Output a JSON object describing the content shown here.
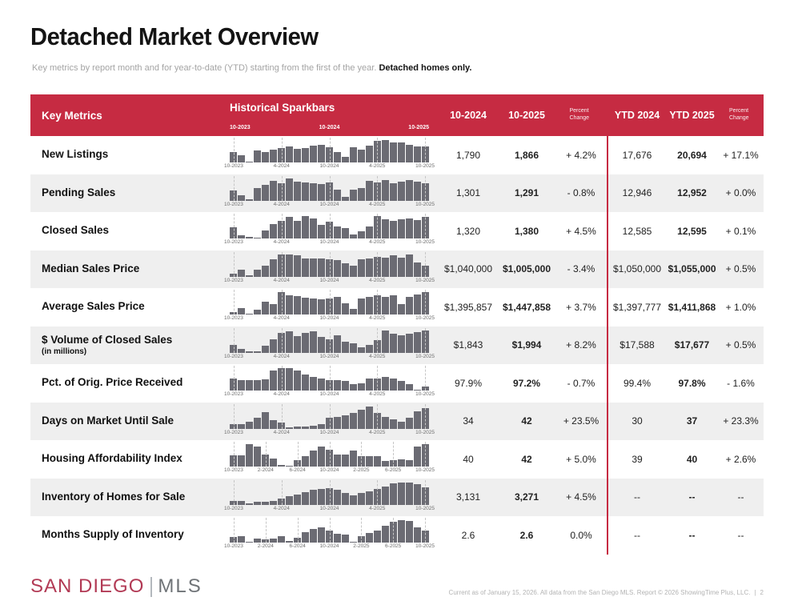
{
  "page": {
    "title": "Detached Market Overview",
    "subtitle": "Key metrics by report month and for year-to-date (YTD) starting from the first of the year.",
    "subtitle_emphasis": "Detached homes only."
  },
  "colors": {
    "accent_red": "#C62B42",
    "bar_gray": "#6B6B73",
    "row_alt": "#EFEFEF",
    "logo_red": "#B23A55",
    "logo_gray": "#6F7377"
  },
  "table": {
    "header": {
      "key_metrics": "Key Metrics",
      "sparkbars_title": "Historical Sparkbars",
      "spark_years": [
        "10-2023",
        "10-2024",
        "10-2025"
      ],
      "month_prev": "10-2024",
      "month_curr": "10-2025",
      "month_pct": "Percent Change",
      "ytd_prev": "YTD 2024",
      "ytd_curr": "YTD 2025",
      "ytd_pct": "Percent Change"
    },
    "rows": [
      {
        "label": "New Listings",
        "ticks": [
          "10-2023",
          "4-2024",
          "10-2024",
          "4-2025",
          "10-2025"
        ],
        "bars": [
          0.45,
          0.32,
          0.05,
          0.52,
          0.45,
          0.58,
          0.63,
          0.72,
          0.62,
          0.66,
          0.74,
          0.8,
          0.68,
          0.45,
          0.25,
          0.68,
          0.58,
          0.75,
          0.95,
          1.0,
          0.9,
          0.9,
          0.78,
          0.7,
          0.72
        ],
        "month_prev": "1,790",
        "month_curr": "1,866",
        "month_pct": "+ 4.2%",
        "ytd_prev": "17,676",
        "ytd_curr": "20,694",
        "ytd_pct": "+ 17.1%"
      },
      {
        "label": "Pending Sales",
        "ticks": [
          "10-2023",
          "4-2024",
          "10-2024",
          "4-2025",
          "10-2025"
        ],
        "bars": [
          0.45,
          0.25,
          0.06,
          0.55,
          0.68,
          0.88,
          0.78,
          1.0,
          0.85,
          0.82,
          0.78,
          0.72,
          0.8,
          0.5,
          0.15,
          0.48,
          0.55,
          0.88,
          0.8,
          0.92,
          0.78,
          0.85,
          0.9,
          0.85,
          0.78
        ],
        "month_prev": "1,301",
        "month_curr": "1,291",
        "month_pct": "- 0.8%",
        "ytd_prev": "12,946",
        "ytd_curr": "12,952",
        "ytd_pct": "+ 0.0%"
      },
      {
        "label": "Closed Sales",
        "ticks": [
          "10-2023",
          "4-2024",
          "10-2024",
          "4-2025",
          "10-2025"
        ],
        "bars": [
          0.5,
          0.15,
          0.08,
          0.05,
          0.35,
          0.65,
          0.8,
          0.95,
          0.78,
          1.0,
          0.88,
          0.6,
          0.75,
          0.55,
          0.45,
          0.18,
          0.32,
          0.55,
          1.0,
          0.85,
          0.8,
          0.85,
          0.9,
          0.82,
          0.95
        ],
        "month_prev": "1,320",
        "month_curr": "1,380",
        "month_pct": "+ 4.5%",
        "ytd_prev": "12,585",
        "ytd_curr": "12,595",
        "ytd_pct": "+ 0.1%"
      },
      {
        "label": "Median Sales Price",
        "ticks": [
          "10-2023",
          "4-2024",
          "10-2024",
          "4-2025",
          "10-2025"
        ],
        "bars": [
          0.12,
          0.3,
          0.05,
          0.3,
          0.48,
          0.78,
          1.0,
          1.0,
          0.95,
          0.8,
          0.8,
          0.82,
          0.78,
          0.72,
          0.6,
          0.5,
          0.78,
          0.82,
          0.88,
          0.85,
          0.95,
          0.85,
          1.0,
          0.62,
          0.48
        ],
        "month_prev": "$1,040,000",
        "month_curr": "$1,005,000",
        "month_pct": "- 3.4%",
        "ytd_prev": "$1,050,000",
        "ytd_curr": "$1,055,000",
        "ytd_pct": "+ 0.5%"
      },
      {
        "label": "Average Sales Price",
        "ticks": [
          "10-2023",
          "4-2024",
          "10-2024",
          "4-2025",
          "10-2025"
        ],
        "bars": [
          0.12,
          0.3,
          0.05,
          0.22,
          0.58,
          0.45,
          1.0,
          0.85,
          0.82,
          0.75,
          0.72,
          0.68,
          0.72,
          0.78,
          0.5,
          0.25,
          0.72,
          0.8,
          0.85,
          0.8,
          0.85,
          0.45,
          0.78,
          0.88,
          1.0
        ],
        "month_prev": "$1,395,857",
        "month_curr": "$1,447,858",
        "month_pct": "+ 3.7%",
        "ytd_prev": "$1,397,777",
        "ytd_curr": "$1,411,868",
        "ytd_pct": "+ 1.0%"
      },
      {
        "label": "$ Volume of Closed Sales",
        "sublabel": "(in millions)",
        "ticks": [
          "10-2023",
          "4-2024",
          "10-2024",
          "4-2025",
          "10-2025"
        ],
        "bars": [
          0.35,
          0.15,
          0.05,
          0.06,
          0.3,
          0.6,
          0.88,
          0.95,
          0.75,
          0.88,
          0.95,
          0.7,
          0.6,
          0.78,
          0.48,
          0.42,
          0.25,
          0.35,
          0.55,
          1.0,
          0.85,
          0.78,
          0.85,
          0.9,
          1.0
        ],
        "month_prev": "$1,843",
        "month_curr": "$1,994",
        "month_pct": "+ 8.2%",
        "ytd_prev": "$17,588",
        "ytd_curr": "$17,677",
        "ytd_pct": "+ 0.5%"
      },
      {
        "label": "Pct. of Orig. Price Received",
        "ticks": [
          "10-2023",
          "4-2024",
          "10-2024",
          "4-2025",
          "10-2025"
        ],
        "bars": [
          0.55,
          0.45,
          0.45,
          0.45,
          0.5,
          0.88,
          1.0,
          1.0,
          0.9,
          0.7,
          0.62,
          0.55,
          0.45,
          0.45,
          0.42,
          0.28,
          0.32,
          0.55,
          0.55,
          0.6,
          0.55,
          0.42,
          0.3,
          0.05,
          0.18
        ],
        "month_prev": "97.9%",
        "month_curr": "97.2%",
        "month_pct": "- 0.7%",
        "ytd_prev": "99.4%",
        "ytd_curr": "97.8%",
        "ytd_pct": "- 1.6%"
      },
      {
        "label": "Days on Market Until Sale",
        "ticks": [
          "10-2023",
          "4-2024",
          "10-2024",
          "4-2025",
          "10-2025"
        ],
        "bars": [
          0.2,
          0.2,
          0.32,
          0.48,
          0.75,
          0.38,
          0.28,
          0.05,
          0.1,
          0.1,
          0.14,
          0.2,
          0.5,
          0.52,
          0.58,
          0.68,
          0.85,
          1.0,
          0.68,
          0.52,
          0.42,
          0.3,
          0.48,
          0.78,
          0.92
        ],
        "month_prev": "34",
        "month_curr": "42",
        "month_pct": "+ 23.5%",
        "ytd_prev": "30",
        "ytd_curr": "37",
        "ytd_pct": "+ 23.3%"
      },
      {
        "label": "Housing Affordability Index",
        "ticks": [
          "10-2023",
          "2-2024",
          "6-2024",
          "10-2024",
          "2-2025",
          "6-2025",
          "10-2025"
        ],
        "bars": [
          0.5,
          0.5,
          1.0,
          0.9,
          0.55,
          0.35,
          0.06,
          0.04,
          0.3,
          0.45,
          0.72,
          0.9,
          0.75,
          0.55,
          0.55,
          0.72,
          0.45,
          0.45,
          0.45,
          0.25,
          0.3,
          0.32,
          0.28,
          0.9,
          1.0
        ],
        "month_prev": "40",
        "month_curr": "42",
        "month_pct": "+ 5.0%",
        "ytd_prev": "39",
        "ytd_curr": "40",
        "ytd_pct": "+ 2.6%"
      },
      {
        "label": "Inventory of Homes for Sale",
        "ticks": [
          "10-2023",
          "4-2024",
          "10-2024",
          "4-2025",
          "10-2025"
        ],
        "bars": [
          0.15,
          0.15,
          0.04,
          0.12,
          0.12,
          0.15,
          0.28,
          0.38,
          0.45,
          0.55,
          0.65,
          0.7,
          0.72,
          0.65,
          0.52,
          0.42,
          0.52,
          0.58,
          0.68,
          0.82,
          0.95,
          1.0,
          1.0,
          0.9,
          0.78
        ],
        "month_prev": "3,131",
        "month_curr": "3,271",
        "month_pct": "+ 4.5%",
        "ytd_prev": "--",
        "ytd_curr": "--",
        "ytd_pct": "--"
      },
      {
        "label": "Months Supply of Inventory",
        "ticks": [
          "10-2023",
          "2-2024",
          "6-2024",
          "10-2024",
          "2-2025",
          "6-2025",
          "10-2025"
        ],
        "bars": [
          0.25,
          0.28,
          0.04,
          0.18,
          0.16,
          0.18,
          0.3,
          0.08,
          0.22,
          0.45,
          0.62,
          0.68,
          0.55,
          0.4,
          0.35,
          0.04,
          0.3,
          0.42,
          0.55,
          0.75,
          0.92,
          1.0,
          0.97,
          0.68,
          0.55
        ],
        "month_prev": "2.6",
        "month_curr": "2.6",
        "month_pct": "0.0%",
        "ytd_prev": "--",
        "ytd_curr": "--",
        "ytd_pct": "--"
      }
    ]
  },
  "footer": {
    "logo_primary": "SAN DIEGO",
    "logo_secondary": "MLS",
    "note": "Current as of January 15, 2026. All data from the San Diego MLS. Report © 2026 ShowingTime Plus, LLC.",
    "separator": "|",
    "page_number": "2"
  }
}
